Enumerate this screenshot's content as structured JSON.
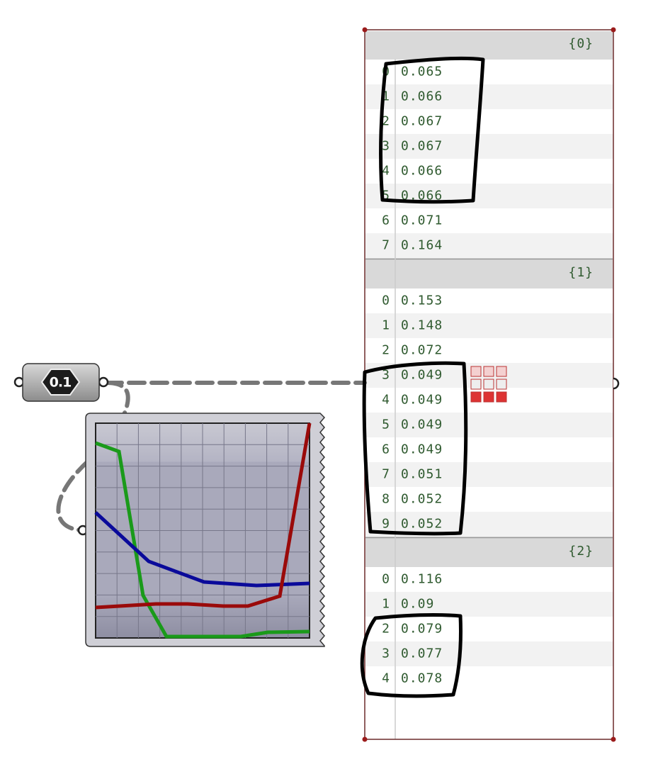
{
  "node": {
    "label": "0.1"
  },
  "panel": {
    "branches": [
      {
        "path": "{0}",
        "rows": [
          {
            "index": "0",
            "value": "0.065"
          },
          {
            "index": "1",
            "value": "0.066"
          },
          {
            "index": "2",
            "value": "0.067"
          },
          {
            "index": "3",
            "value": "0.067"
          },
          {
            "index": "4",
            "value": "0.066"
          },
          {
            "index": "5",
            "value": "0.066"
          },
          {
            "index": "6",
            "value": "0.071"
          },
          {
            "index": "7",
            "value": "0.164"
          }
        ]
      },
      {
        "path": "{1}",
        "rows": [
          {
            "index": "0",
            "value": "0.153"
          },
          {
            "index": "1",
            "value": "0.148"
          },
          {
            "index": "2",
            "value": "0.072"
          },
          {
            "index": "3",
            "value": "0.049"
          },
          {
            "index": "4",
            "value": "0.049"
          },
          {
            "index": "5",
            "value": "0.049"
          },
          {
            "index": "6",
            "value": "0.049"
          },
          {
            "index": "7",
            "value": "0.051"
          },
          {
            "index": "8",
            "value": "0.052"
          },
          {
            "index": "9",
            "value": "0.052"
          }
        ]
      },
      {
        "path": "{2}",
        "rows": [
          {
            "index": "0",
            "value": "0.116"
          },
          {
            "index": "1",
            "value": "0.09"
          },
          {
            "index": "2",
            "value": "0.079"
          },
          {
            "index": "3",
            "value": "0.077"
          },
          {
            "index": "4",
            "value": "0.078"
          }
        ]
      }
    ]
  }
}
